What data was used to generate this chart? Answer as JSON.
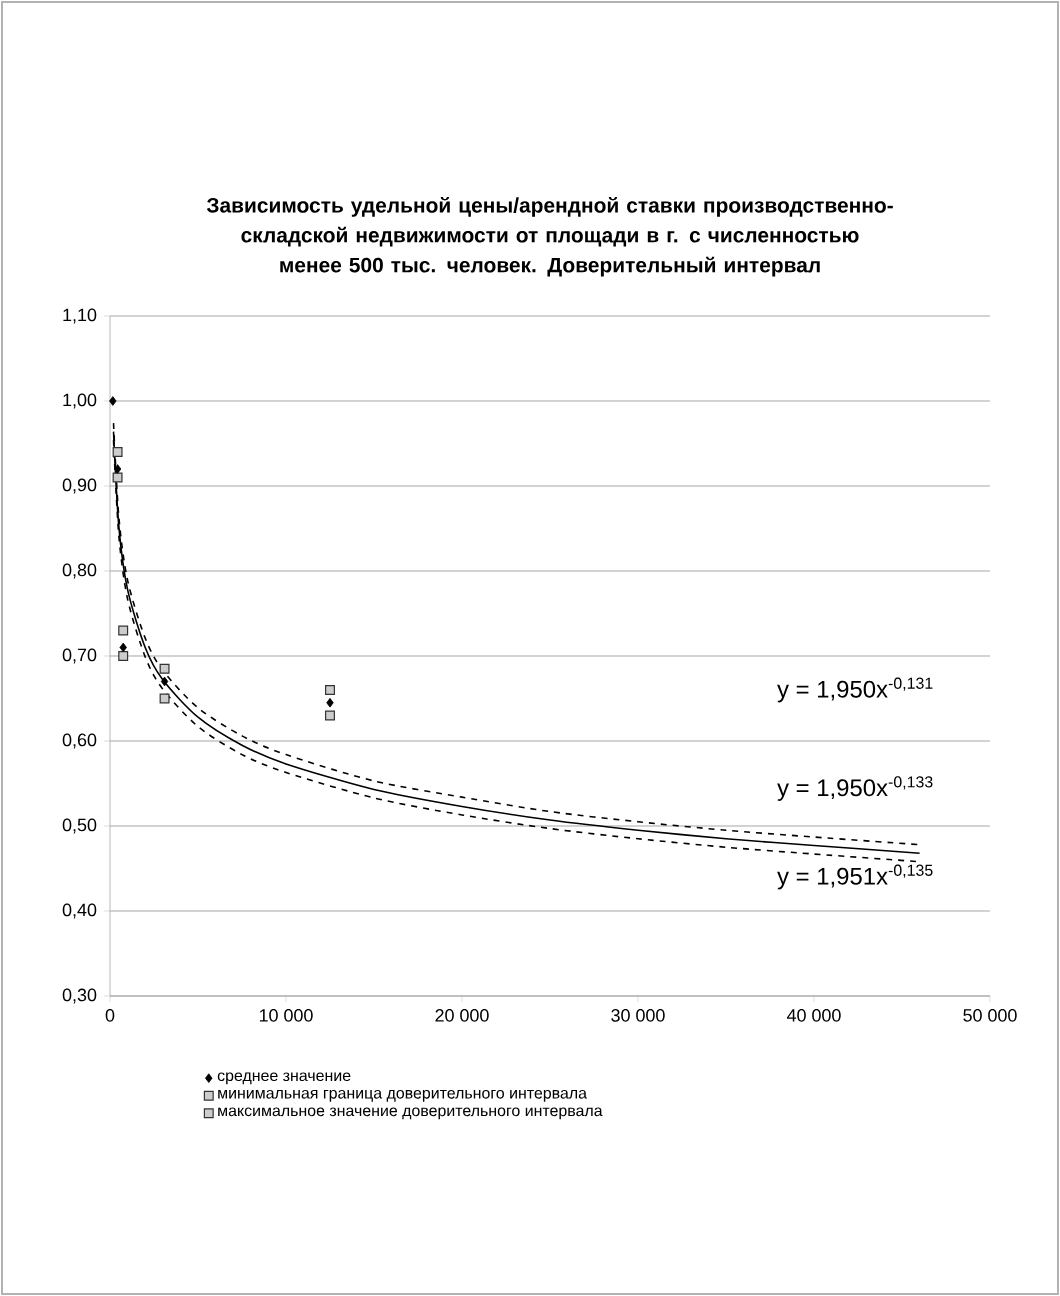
{
  "chart_data": {
    "type": "scatter",
    "title": "Зависимость удельной цены/арендной ставки производственно-складской недвижимости от площади в г. с численностью менее 500 тыс. человек. Доверительный интервал",
    "xlim": [
      0,
      50000
    ],
    "ylim": [
      0.3,
      1.1
    ],
    "xticks": [
      0,
      {
        "value": 10000,
        "label": "10 000"
      },
      {
        "value": 20000,
        "label": "20 000"
      },
      {
        "value": 30000,
        "label": "30 000"
      },
      {
        "value": 40000,
        "label": "40 000"
      },
      {
        "value": 50000,
        "label": "50 000"
      }
    ],
    "yticks": [
      {
        "value": 0.3,
        "label": "0,30"
      },
      {
        "value": 0.4,
        "label": "0,40"
      },
      {
        "value": 0.5,
        "label": "0,50"
      },
      {
        "value": 0.6,
        "label": "0,60"
      },
      {
        "value": 0.7,
        "label": "0,70"
      },
      {
        "value": 0.8,
        "label": "0,80"
      },
      {
        "value": 0.9,
        "label": "0,90"
      },
      {
        "value": 1.0,
        "label": "1,00"
      },
      {
        "value": 1.1,
        "label": "1,10"
      }
    ],
    "grid": "y",
    "legend": "bottom",
    "series": [
      {
        "name": "среднее значение",
        "type": "scatter",
        "marker": "diamond",
        "color": "#000000",
        "x": [
          160,
          430,
          750,
          3100,
          12500
        ],
        "values": [
          1.0,
          0.92,
          0.71,
          0.67,
          0.645
        ]
      },
      {
        "name": "минимальная граница доверительного интервала",
        "type": "scatter",
        "marker": "square",
        "color": "#333333",
        "x": [
          430,
          750,
          3100,
          12500
        ],
        "values": [
          0.91,
          0.7,
          0.65,
          0.63
        ]
      },
      {
        "name": "максимальное значение доверительного интервала",
        "type": "scatter",
        "marker": "square",
        "color": "#333333",
        "x": [
          430,
          750,
          3100,
          12500
        ],
        "values": [
          0.94,
          0.73,
          0.685,
          0.66
        ]
      },
      {
        "type": "line",
        "marker": "none",
        "line_style": "solid",
        "color": "#000000",
        "x": [
          200,
          500,
          1000,
          2000,
          3000,
          5000,
          7500,
          10000,
          15000,
          20000,
          25000,
          30000,
          35000,
          40000,
          46000
        ],
        "values": [
          0.964,
          0.853,
          0.778,
          0.71,
          0.672,
          0.628,
          0.595,
          0.573,
          0.543,
          0.523,
          0.507,
          0.495,
          0.485,
          0.477,
          0.468
        ]
      },
      {
        "type": "line",
        "marker": "none",
        "line_style": "dashed",
        "color": "#000000",
        "x": [
          200,
          500,
          1000,
          2000,
          3000,
          5000,
          7500,
          10000,
          15000,
          20000,
          25000,
          30000,
          35000,
          40000,
          46000
        ],
        "values": [
          0.974,
          0.864,
          0.789,
          0.721,
          0.683,
          0.639,
          0.606,
          0.584,
          0.553,
          0.534,
          0.517,
          0.505,
          0.495,
          0.487,
          0.478
        ]
      },
      {
        "type": "line",
        "marker": "none",
        "line_style": "dashed",
        "color": "#000000",
        "x": [
          200,
          500,
          1000,
          2000,
          3000,
          5000,
          7500,
          10000,
          15000,
          20000,
          25000,
          30000,
          35000,
          40000,
          46000
        ],
        "values": [
          0.954,
          0.842,
          0.767,
          0.699,
          0.661,
          0.617,
          0.584,
          0.563,
          0.533,
          0.513,
          0.497,
          0.485,
          0.475,
          0.467,
          0.458
        ]
      }
    ],
    "annotations": [
      "y = 1,950x$^{-0,131}$",
      "y = 1,950x$^{-0,133}$",
      "y = 1,951x$^{-0,135}$"
    ]
  }
}
